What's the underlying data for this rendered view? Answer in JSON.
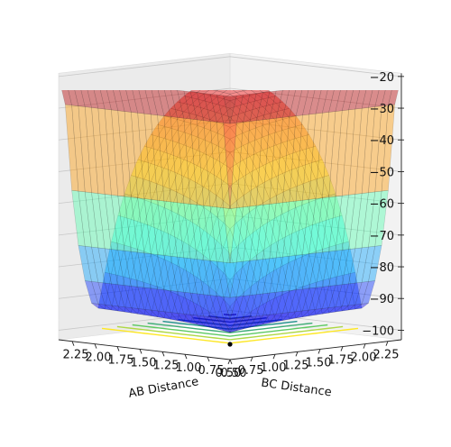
{
  "chart_data": {
    "type": "surface3d",
    "title": "",
    "xlabel": "AB Distance",
    "ylabel": "BC Distance",
    "zlabel": "",
    "x_ticks": [
      "0.50",
      "0.75",
      "1.00",
      "1.25",
      "1.50",
      "1.75",
      "2.00",
      "2.25"
    ],
    "y_ticks": [
      "0.50",
      "0.75",
      "1.00",
      "1.25",
      "1.50",
      "1.75",
      "2.00",
      "2.25"
    ],
    "z_ticks": [
      "−100",
      "−90",
      "−80",
      "−70",
      "−60",
      "−50",
      "−40",
      "−30",
      "−20"
    ],
    "x_range": [
      0.5,
      2.4
    ],
    "y_range": [
      0.5,
      2.4
    ],
    "z_range": [
      -103,
      -20
    ],
    "colormap": "jet (transparent surface) with viridis contour projection on floor",
    "surface": {
      "description": "potential energy surface: deep valleys along both axes meeting at a saddle near the center, rising to about -20 at the far corners",
      "saddle_point": {
        "x": 0.93,
        "y": 0.93,
        "z": -101
      },
      "max_z": -20,
      "min_z": -103
    },
    "marker": {
      "label": "",
      "color": "#000000"
    }
  }
}
